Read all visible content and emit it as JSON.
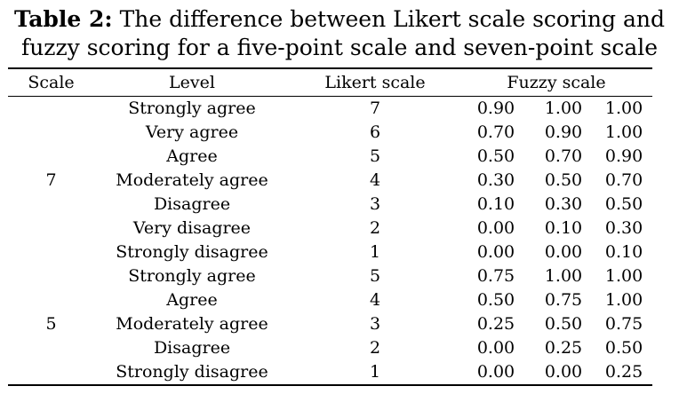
{
  "caption": {
    "label": "Table 2:",
    "text_line1": " The difference between Likert scale scoring and",
    "text_line2": "fuzzy scoring for a five-point scale and seven-point scale"
  },
  "table": {
    "headers": {
      "scale": "Scale",
      "level": "Level",
      "likert": "Likert scale",
      "fuzzy": "Fuzzy scale"
    },
    "groups": [
      {
        "scale": "7",
        "rows": [
          {
            "level": "Strongly agree",
            "likert": "7",
            "fuzzy": [
              "0.90",
              "1.00",
              "1.00"
            ]
          },
          {
            "level": "Very agree",
            "likert": "6",
            "fuzzy": [
              "0.70",
              "0.90",
              "1.00"
            ]
          },
          {
            "level": "Agree",
            "likert": "5",
            "fuzzy": [
              "0.50",
              "0.70",
              "0.90"
            ]
          },
          {
            "level": "Moderately agree",
            "likert": "4",
            "fuzzy": [
              "0.30",
              "0.50",
              "0.70"
            ]
          },
          {
            "level": "Disagree",
            "likert": "3",
            "fuzzy": [
              "0.10",
              "0.30",
              "0.50"
            ]
          },
          {
            "level": "Very disagree",
            "likert": "2",
            "fuzzy": [
              "0.00",
              "0.10",
              "0.30"
            ]
          },
          {
            "level": "Strongly disagree",
            "likert": "1",
            "fuzzy": [
              "0.00",
              "0.00",
              "0.10"
            ]
          }
        ]
      },
      {
        "scale": "5",
        "rows": [
          {
            "level": "Strongly agree",
            "likert": "5",
            "fuzzy": [
              "0.75",
              "1.00",
              "1.00"
            ]
          },
          {
            "level": "Agree",
            "likert": "4",
            "fuzzy": [
              "0.50",
              "0.75",
              "1.00"
            ]
          },
          {
            "level": "Moderately agree",
            "likert": "3",
            "fuzzy": [
              "0.25",
              "0.50",
              "0.75"
            ]
          },
          {
            "level": "Disagree",
            "likert": "2",
            "fuzzy": [
              "0.00",
              "0.25",
              "0.50"
            ]
          },
          {
            "level": "Strongly disagree",
            "likert": "1",
            "fuzzy": [
              "0.00",
              "0.00",
              "0.25"
            ]
          }
        ]
      }
    ]
  }
}
